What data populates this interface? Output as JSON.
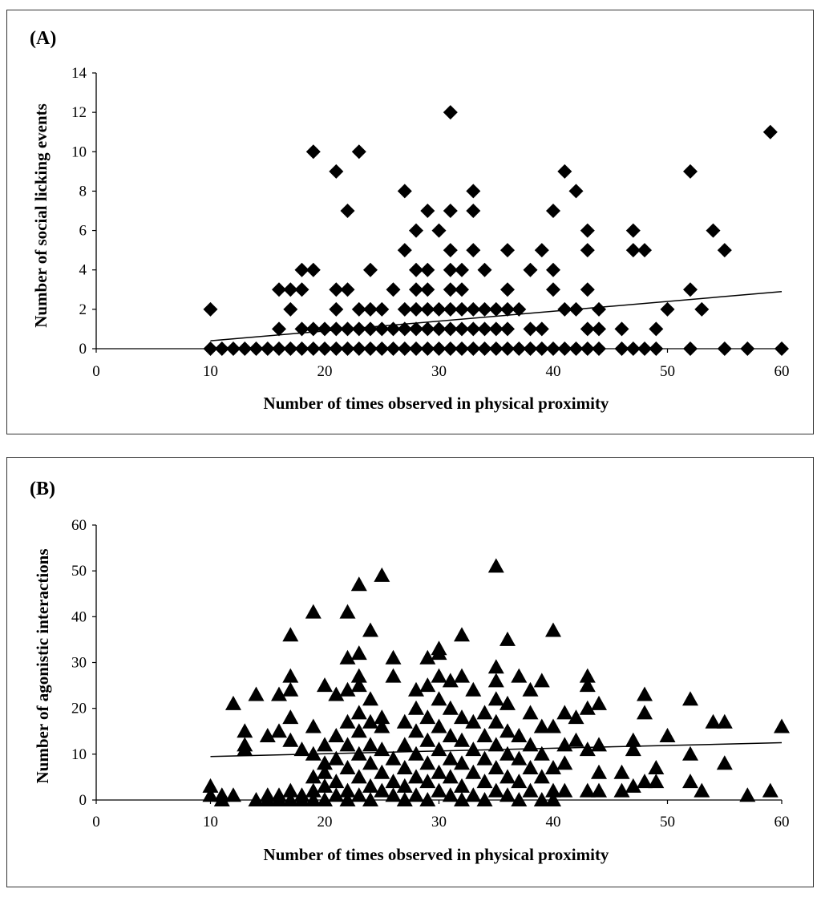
{
  "colors": {
    "marker": "#000000",
    "axis": "#000000",
    "frame": "#333333",
    "background": "#ffffff"
  },
  "chart_data": [
    {
      "type": "scatter",
      "panel_label": "(A)",
      "xlabel": "Number of times observed in physical proximity",
      "ylabel": "Number of social licking events",
      "xlim": [
        0,
        60
      ],
      "ylim": [
        0,
        14
      ],
      "xticks": [
        0,
        10,
        20,
        30,
        40,
        50,
        60
      ],
      "yticks": [
        0,
        2,
        4,
        6,
        8,
        10,
        12,
        14
      ],
      "marker": "diamond-icon",
      "grid": false,
      "legend": "none",
      "trendline": {
        "x": [
          10,
          60
        ],
        "y": [
          0.4,
          2.9
        ]
      },
      "points": [
        [
          10,
          2
        ],
        [
          10,
          0
        ],
        [
          11,
          0
        ],
        [
          12,
          0
        ],
        [
          13,
          0
        ],
        [
          14,
          0
        ],
        [
          15,
          0
        ],
        [
          16,
          0
        ],
        [
          17,
          0
        ],
        [
          18,
          0
        ],
        [
          19,
          0
        ],
        [
          20,
          0
        ],
        [
          21,
          0
        ],
        [
          22,
          0
        ],
        [
          23,
          0
        ],
        [
          24,
          0
        ],
        [
          25,
          0
        ],
        [
          26,
          0
        ],
        [
          27,
          0
        ],
        [
          28,
          0
        ],
        [
          29,
          0
        ],
        [
          30,
          0
        ],
        [
          31,
          0
        ],
        [
          32,
          0
        ],
        [
          33,
          0
        ],
        [
          34,
          0
        ],
        [
          35,
          0
        ],
        [
          36,
          0
        ],
        [
          37,
          0
        ],
        [
          38,
          0
        ],
        [
          39,
          0
        ],
        [
          40,
          0
        ],
        [
          41,
          0
        ],
        [
          42,
          0
        ],
        [
          43,
          0
        ],
        [
          44,
          0
        ],
        [
          46,
          0
        ],
        [
          47,
          0
        ],
        [
          48,
          0
        ],
        [
          49,
          0
        ],
        [
          52,
          0
        ],
        [
          55,
          0
        ],
        [
          57,
          0
        ],
        [
          60,
          0
        ],
        [
          16,
          1
        ],
        [
          16,
          3
        ],
        [
          17,
          2
        ],
        [
          17,
          3
        ],
        [
          18,
          1
        ],
        [
          18,
          3
        ],
        [
          18,
          4
        ],
        [
          19,
          1
        ],
        [
          19,
          4
        ],
        [
          19,
          10
        ],
        [
          20,
          1
        ],
        [
          21,
          1
        ],
        [
          21,
          2
        ],
        [
          21,
          3
        ],
        [
          21,
          9
        ],
        [
          22,
          1
        ],
        [
          22,
          3
        ],
        [
          22,
          7
        ],
        [
          23,
          1
        ],
        [
          23,
          2
        ],
        [
          23,
          10
        ],
        [
          24,
          1
        ],
        [
          24,
          2
        ],
        [
          24,
          4
        ],
        [
          25,
          1
        ],
        [
          25,
          2
        ],
        [
          26,
          1
        ],
        [
          26,
          3
        ],
        [
          27,
          1
        ],
        [
          27,
          2
        ],
        [
          27,
          5
        ],
        [
          27,
          8
        ],
        [
          28,
          1
        ],
        [
          28,
          2
        ],
        [
          28,
          3
        ],
        [
          28,
          4
        ],
        [
          28,
          6
        ],
        [
          29,
          1
        ],
        [
          29,
          2
        ],
        [
          29,
          3
        ],
        [
          29,
          4
        ],
        [
          29,
          7
        ],
        [
          30,
          1
        ],
        [
          30,
          2
        ],
        [
          30,
          6
        ],
        [
          31,
          1
        ],
        [
          31,
          2
        ],
        [
          31,
          3
        ],
        [
          31,
          4
        ],
        [
          31,
          5
        ],
        [
          31,
          7
        ],
        [
          31,
          12
        ],
        [
          32,
          1
        ],
        [
          32,
          2
        ],
        [
          32,
          3
        ],
        [
          32,
          4
        ],
        [
          33,
          1
        ],
        [
          33,
          2
        ],
        [
          33,
          5
        ],
        [
          33,
          7
        ],
        [
          33,
          8
        ],
        [
          34,
          1
        ],
        [
          34,
          2
        ],
        [
          34,
          4
        ],
        [
          35,
          1
        ],
        [
          35,
          2
        ],
        [
          36,
          1
        ],
        [
          36,
          2
        ],
        [
          36,
          3
        ],
        [
          36,
          5
        ],
        [
          37,
          2
        ],
        [
          38,
          1
        ],
        [
          38,
          4
        ],
        [
          39,
          1
        ],
        [
          39,
          5
        ],
        [
          40,
          3
        ],
        [
          40,
          4
        ],
        [
          40,
          7
        ],
        [
          41,
          2
        ],
        [
          41,
          9
        ],
        [
          42,
          2
        ],
        [
          42,
          8
        ],
        [
          43,
          1
        ],
        [
          43,
          3
        ],
        [
          43,
          5
        ],
        [
          43,
          6
        ],
        [
          44,
          1
        ],
        [
          44,
          2
        ],
        [
          46,
          1
        ],
        [
          47,
          5
        ],
        [
          47,
          6
        ],
        [
          48,
          5
        ],
        [
          49,
          1
        ],
        [
          50,
          2
        ],
        [
          52,
          3
        ],
        [
          52,
          9
        ],
        [
          53,
          2
        ],
        [
          54,
          6
        ],
        [
          55,
          5
        ],
        [
          59,
          11
        ]
      ]
    },
    {
      "type": "scatter",
      "panel_label": "(B)",
      "xlabel": "Number of times observed in physical proximity",
      "ylabel": "Number of agonistic interactions",
      "xlim": [
        0,
        60
      ],
      "ylim": [
        0,
        60
      ],
      "xticks": [
        0,
        10,
        20,
        30,
        40,
        50,
        60
      ],
      "yticks": [
        0,
        10,
        20,
        30,
        40,
        50,
        60
      ],
      "marker": "triangle-icon",
      "grid": false,
      "legend": "none",
      "trendline": {
        "x": [
          10,
          60
        ],
        "y": [
          9.5,
          12.5
        ]
      },
      "points": [
        [
          10,
          3
        ],
        [
          10,
          1
        ],
        [
          11,
          0
        ],
        [
          11,
          1
        ],
        [
          12,
          1
        ],
        [
          12,
          21
        ],
        [
          13,
          11
        ],
        [
          13,
          12
        ],
        [
          13,
          15
        ],
        [
          14,
          0
        ],
        [
          14,
          23
        ],
        [
          15,
          0
        ],
        [
          15,
          1
        ],
        [
          15,
          14
        ],
        [
          16,
          0
        ],
        [
          16,
          1
        ],
        [
          16,
          15
        ],
        [
          16,
          23
        ],
        [
          17,
          0
        ],
        [
          17,
          2
        ],
        [
          17,
          13
        ],
        [
          17,
          18
        ],
        [
          17,
          24
        ],
        [
          17,
          27
        ],
        [
          17,
          36
        ],
        [
          18,
          1
        ],
        [
          18,
          11
        ],
        [
          18,
          0
        ],
        [
          19,
          0
        ],
        [
          19,
          2
        ],
        [
          19,
          5
        ],
        [
          19,
          10
        ],
        [
          19,
          16
        ],
        [
          19,
          41
        ],
        [
          20,
          0
        ],
        [
          20,
          3
        ],
        [
          20,
          6
        ],
        [
          20,
          8
        ],
        [
          20,
          12
        ],
        [
          20,
          25
        ],
        [
          21,
          1
        ],
        [
          21,
          4
        ],
        [
          21,
          9
        ],
        [
          21,
          14
        ],
        [
          21,
          23
        ],
        [
          22,
          0
        ],
        [
          22,
          2
        ],
        [
          22,
          7
        ],
        [
          22,
          12
        ],
        [
          22,
          17
        ],
        [
          22,
          24
        ],
        [
          22,
          31
        ],
        [
          22,
          41
        ],
        [
          23,
          1
        ],
        [
          23,
          5
        ],
        [
          23,
          10
        ],
        [
          23,
          15
        ],
        [
          23,
          19
        ],
        [
          23,
          25
        ],
        [
          23,
          27
        ],
        [
          23,
          32
        ],
        [
          23,
          47
        ],
        [
          24,
          0
        ],
        [
          24,
          3
        ],
        [
          24,
          8
        ],
        [
          24,
          12
        ],
        [
          24,
          17
        ],
        [
          24,
          22
        ],
        [
          24,
          37
        ],
        [
          25,
          2
        ],
        [
          25,
          6
        ],
        [
          25,
          11
        ],
        [
          25,
          16
        ],
        [
          25,
          18
        ],
        [
          25,
          49
        ],
        [
          26,
          1
        ],
        [
          26,
          4
        ],
        [
          26,
          9
        ],
        [
          26,
          27
        ],
        [
          26,
          31
        ],
        [
          27,
          0
        ],
        [
          27,
          3
        ],
        [
          27,
          7
        ],
        [
          27,
          12
        ],
        [
          27,
          17
        ],
        [
          28,
          1
        ],
        [
          28,
          5
        ],
        [
          28,
          10
        ],
        [
          28,
          15
        ],
        [
          28,
          20
        ],
        [
          28,
          24
        ],
        [
          29,
          0
        ],
        [
          29,
          4
        ],
        [
          29,
          8
        ],
        [
          29,
          13
        ],
        [
          29,
          18
        ],
        [
          29,
          25
        ],
        [
          29,
          31
        ],
        [
          30,
          2
        ],
        [
          30,
          6
        ],
        [
          30,
          11
        ],
        [
          30,
          16
        ],
        [
          30,
          22
        ],
        [
          30,
          27
        ],
        [
          30,
          32
        ],
        [
          30,
          33
        ],
        [
          31,
          1
        ],
        [
          31,
          5
        ],
        [
          31,
          9
        ],
        [
          31,
          14
        ],
        [
          31,
          20
        ],
        [
          31,
          26
        ],
        [
          32,
          0
        ],
        [
          32,
          3
        ],
        [
          32,
          8
        ],
        [
          32,
          13
        ],
        [
          32,
          18
        ],
        [
          32,
          27
        ],
        [
          32,
          36
        ],
        [
          33,
          1
        ],
        [
          33,
          6
        ],
        [
          33,
          11
        ],
        [
          33,
          17
        ],
        [
          33,
          24
        ],
        [
          34,
          0
        ],
        [
          34,
          4
        ],
        [
          34,
          9
        ],
        [
          34,
          14
        ],
        [
          34,
          19
        ],
        [
          35,
          2
        ],
        [
          35,
          7
        ],
        [
          35,
          12
        ],
        [
          35,
          17
        ],
        [
          35,
          22
        ],
        [
          35,
          26
        ],
        [
          35,
          29
        ],
        [
          35,
          51
        ],
        [
          36,
          1
        ],
        [
          36,
          5
        ],
        [
          36,
          10
        ],
        [
          36,
          15
        ],
        [
          36,
          21
        ],
        [
          36,
          35
        ],
        [
          37,
          0
        ],
        [
          37,
          4
        ],
        [
          37,
          9
        ],
        [
          37,
          14
        ],
        [
          37,
          27
        ],
        [
          38,
          2
        ],
        [
          38,
          7
        ],
        [
          38,
          12
        ],
        [
          38,
          19
        ],
        [
          38,
          24
        ],
        [
          39,
          0
        ],
        [
          39,
          5
        ],
        [
          39,
          10
        ],
        [
          39,
          16
        ],
        [
          39,
          26
        ],
        [
          40,
          0
        ],
        [
          40,
          2
        ],
        [
          40,
          7
        ],
        [
          40,
          16
        ],
        [
          40,
          37
        ],
        [
          41,
          2
        ],
        [
          41,
          8
        ],
        [
          41,
          12
        ],
        [
          41,
          19
        ],
        [
          42,
          13
        ],
        [
          42,
          18
        ],
        [
          43,
          2
        ],
        [
          43,
          11
        ],
        [
          43,
          20
        ],
        [
          43,
          25
        ],
        [
          43,
          27
        ],
        [
          44,
          2
        ],
        [
          44,
          6
        ],
        [
          44,
          12
        ],
        [
          44,
          21
        ],
        [
          46,
          2
        ],
        [
          46,
          6
        ],
        [
          47,
          3
        ],
        [
          47,
          11
        ],
        [
          47,
          13
        ],
        [
          48,
          4
        ],
        [
          48,
          19
        ],
        [
          48,
          23
        ],
        [
          49,
          4
        ],
        [
          49,
          7
        ],
        [
          50,
          14
        ],
        [
          52,
          4
        ],
        [
          52,
          10
        ],
        [
          52,
          22
        ],
        [
          53,
          2
        ],
        [
          54,
          17
        ],
        [
          55,
          8
        ],
        [
          55,
          17
        ],
        [
          57,
          1
        ],
        [
          59,
          2
        ],
        [
          60,
          16
        ]
      ]
    }
  ]
}
